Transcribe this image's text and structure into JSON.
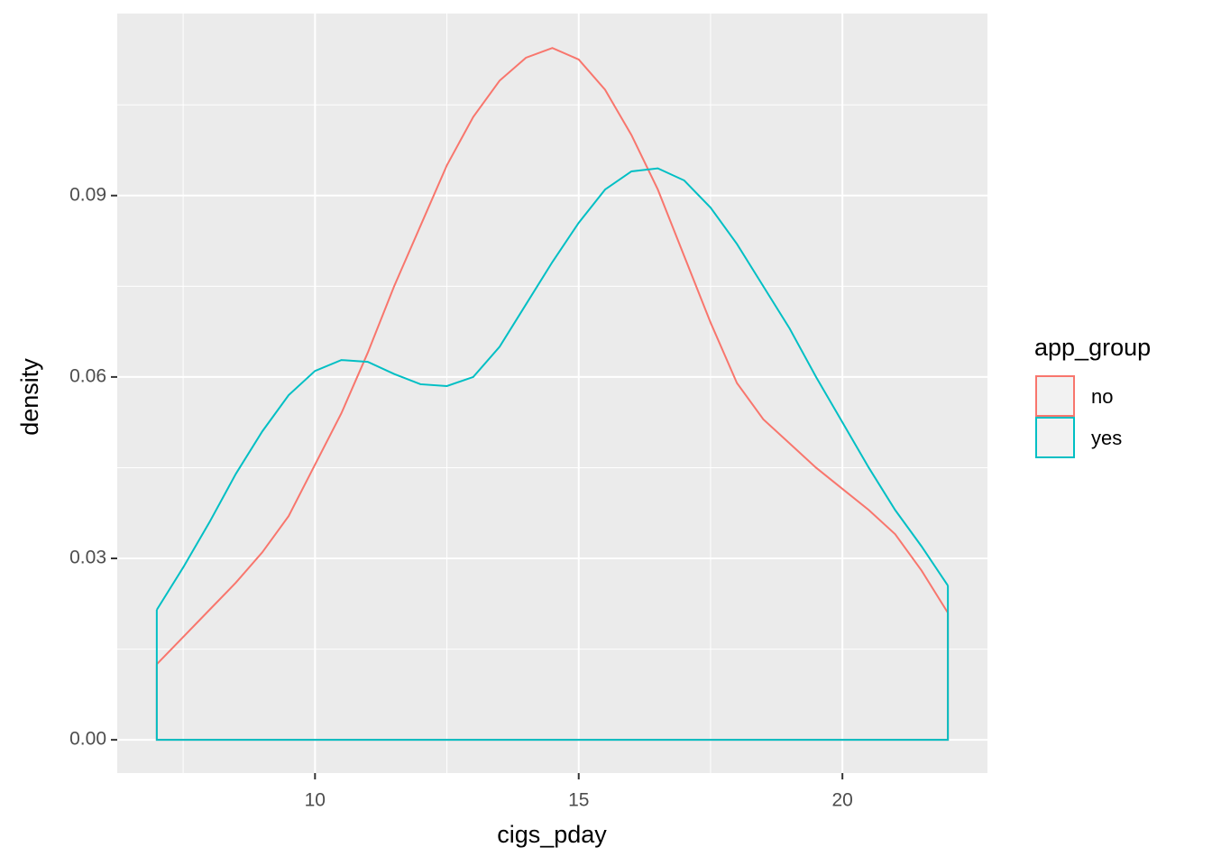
{
  "chart_data": {
    "type": "density",
    "x_label": "cigs_pday",
    "y_label": "density",
    "legend_title": "app_group",
    "xlim": [
      6.25,
      22.75
    ],
    "ylim": [
      -0.0055,
      0.1201
    ],
    "xticks": [
      10,
      15,
      20
    ],
    "yticks": [
      {
        "value": 0,
        "label": "0.00"
      },
      {
        "value": 0.03,
        "label": "0.03"
      },
      {
        "value": 0.06,
        "label": "0.06"
      },
      {
        "value": 0.09,
        "label": "0.09"
      }
    ],
    "xminor": [
      7.5,
      12.5,
      17.5
    ],
    "yminor": [
      0.015,
      0.045,
      0.075,
      0.105
    ],
    "grid": true,
    "legend": "right",
    "x": [
      7,
      7.5,
      8,
      8.5,
      9,
      9.5,
      10,
      10.5,
      11,
      11.5,
      12,
      12.5,
      13,
      13.5,
      14,
      14.5,
      15,
      15.5,
      16,
      16.5,
      17,
      17.5,
      18,
      18.5,
      19,
      19.5,
      20,
      20.5,
      21,
      21.5,
      22
    ],
    "series": [
      {
        "name": "no",
        "color": "#f8766d",
        "values": [
          0.0125,
          0.017,
          0.0215,
          0.026,
          0.031,
          0.037,
          0.0455,
          0.054,
          0.064,
          0.075,
          0.085,
          0.095,
          0.103,
          0.109,
          0.1128,
          0.1144,
          0.1125,
          0.1075,
          0.1,
          0.091,
          0.08,
          0.069,
          0.059,
          0.053,
          0.049,
          0.045,
          0.0415,
          0.038,
          0.034,
          0.028,
          0.021
        ]
      },
      {
        "name": "yes",
        "color": "#00bfc4",
        "values": [
          0.0215,
          0.0285,
          0.036,
          0.044,
          0.051,
          0.057,
          0.061,
          0.0628,
          0.0625,
          0.0605,
          0.0588,
          0.0585,
          0.06,
          0.065,
          0.072,
          0.079,
          0.0855,
          0.091,
          0.094,
          0.0945,
          0.0925,
          0.088,
          0.082,
          0.075,
          0.068,
          0.06,
          0.0525,
          0.045,
          0.038,
          0.032,
          0.0255
        ]
      }
    ]
  }
}
